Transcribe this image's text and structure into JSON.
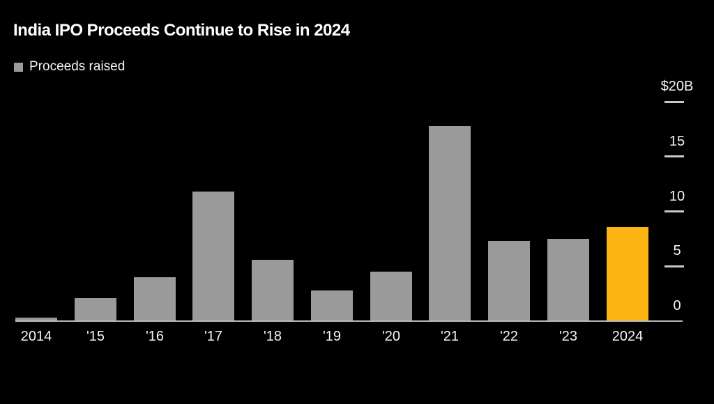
{
  "header": {
    "title": "India IPO Proceeds Continue to Rise in 2024"
  },
  "legend": {
    "label": "Proceeds raised"
  },
  "colors": {
    "background": "#000000",
    "bar": "#9a9a9a",
    "highlight_bar": "#fdb515",
    "axis_line": "#b9b9b9",
    "tick": "#c9c9c9",
    "label_text": "#f5f5f5",
    "title_text": "#ffffff"
  },
  "chart_data": {
    "type": "bar",
    "title": "India IPO Proceeds Continue to Rise in 2024",
    "series_name": "Proceeds raised",
    "categories": [
      "2014",
      "'15",
      "'16",
      "'17",
      "'18",
      "'19",
      "'20",
      "'21",
      "'22",
      "'23",
      "2024"
    ],
    "values": [
      0.3,
      2.1,
      4.0,
      11.8,
      5.6,
      2.8,
      4.5,
      17.8,
      7.3,
      7.5,
      8.6
    ],
    "highlight_index": 10,
    "xlabel": "",
    "ylabel": "",
    "ylim": [
      0,
      20
    ],
    "yticks": [
      0,
      5,
      10,
      15,
      20
    ],
    "ytick_labels": [
      "0",
      "5",
      "10",
      "15",
      "$20B"
    ],
    "axis_side": "right",
    "grid": false,
    "legend_position": "top-left"
  }
}
